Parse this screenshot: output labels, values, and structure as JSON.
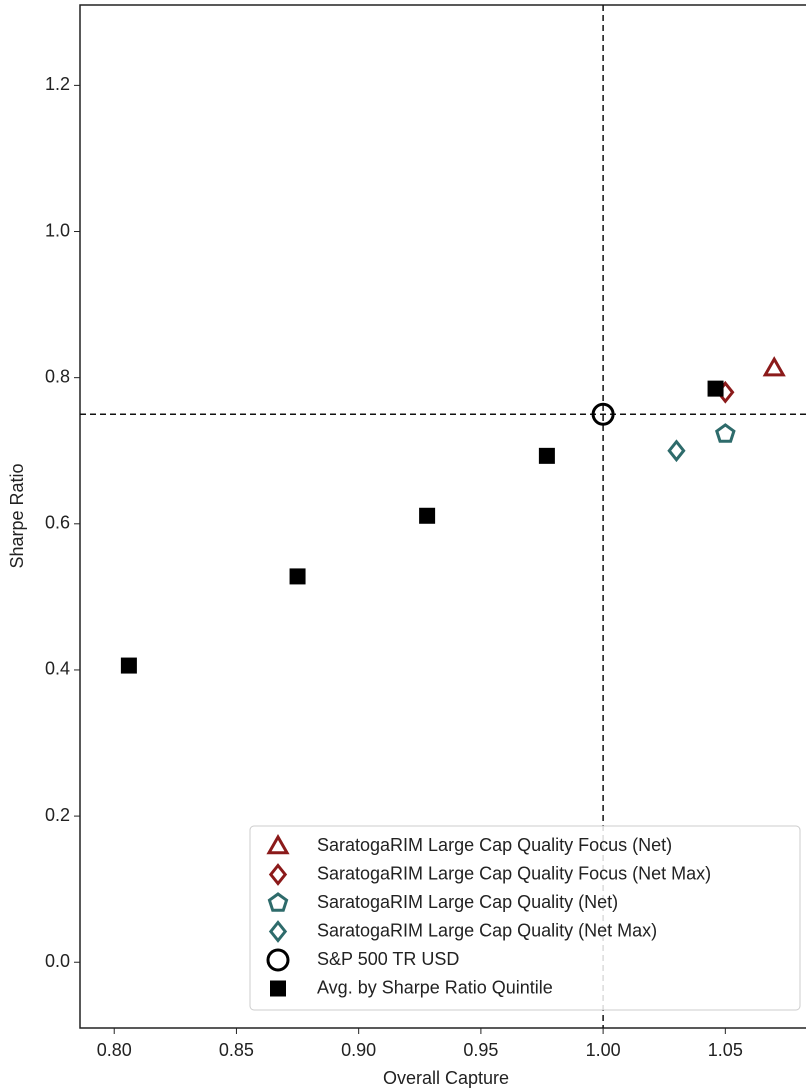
{
  "chart_data": {
    "type": "scatter",
    "x_label": "Overall Capture",
    "y_label": "Sharpe Ratio",
    "xlim": [
      0.786,
      1.083
    ],
    "ylim": [
      -0.09,
      1.31
    ],
    "xticks": [
      {
        "value": 0.8,
        "label": "0.80"
      },
      {
        "value": 0.85,
        "label": "0.85"
      },
      {
        "value": 0.9,
        "label": "0.90"
      },
      {
        "value": 0.95,
        "label": "0.95"
      },
      {
        "value": 1.0,
        "label": "1.00"
      },
      {
        "value": 1.05,
        "label": "1.05"
      }
    ],
    "yticks": [
      {
        "value": 0,
        "label": "0.0"
      },
      0.2,
      0.4,
      0.6,
      0.8,
      {
        "value": 1.0,
        "label": "1.0"
      },
      1.2
    ],
    "reference_x": 1.0,
    "reference_y": 0.75,
    "legend": "lower right",
    "series": [
      {
        "name": "SaratogaRIM Large Cap Quality Focus (Net)",
        "color": "#8b1a1a",
        "marker": "triangle",
        "x": [
          1.07
        ],
        "values": [
          0.813
        ]
      },
      {
        "name": "SaratogaRIM Large Cap Quality Focus (Net Max)",
        "color": "#8b1a1a",
        "marker": "diamond",
        "x": [
          1.05
        ],
        "values": [
          0.78
        ]
      },
      {
        "name": "SaratogaRIM Large Cap Quality (Net)",
        "color": "#2e6b6b",
        "marker": "pentagon",
        "x": [
          1.05
        ],
        "values": [
          0.723
        ]
      },
      {
        "name": "SaratogaRIM Large Cap Quality (Net Max)",
        "color": "#2e6b6b",
        "marker": "diamond",
        "x": [
          1.03
        ],
        "values": [
          0.7
        ]
      },
      {
        "name": "S&P 500 TR USD",
        "color": "#000000",
        "marker": "circle",
        "x": [
          1.0
        ],
        "values": [
          0.75
        ]
      },
      {
        "name": "Avg. by Sharpe Ratio Quintile",
        "color": "#000000",
        "marker": "square",
        "x": [
          0.806,
          0.875,
          0.928,
          0.977,
          1.046
        ],
        "values": [
          0.406,
          0.528,
          0.611,
          0.693,
          0.785
        ]
      }
    ]
  }
}
